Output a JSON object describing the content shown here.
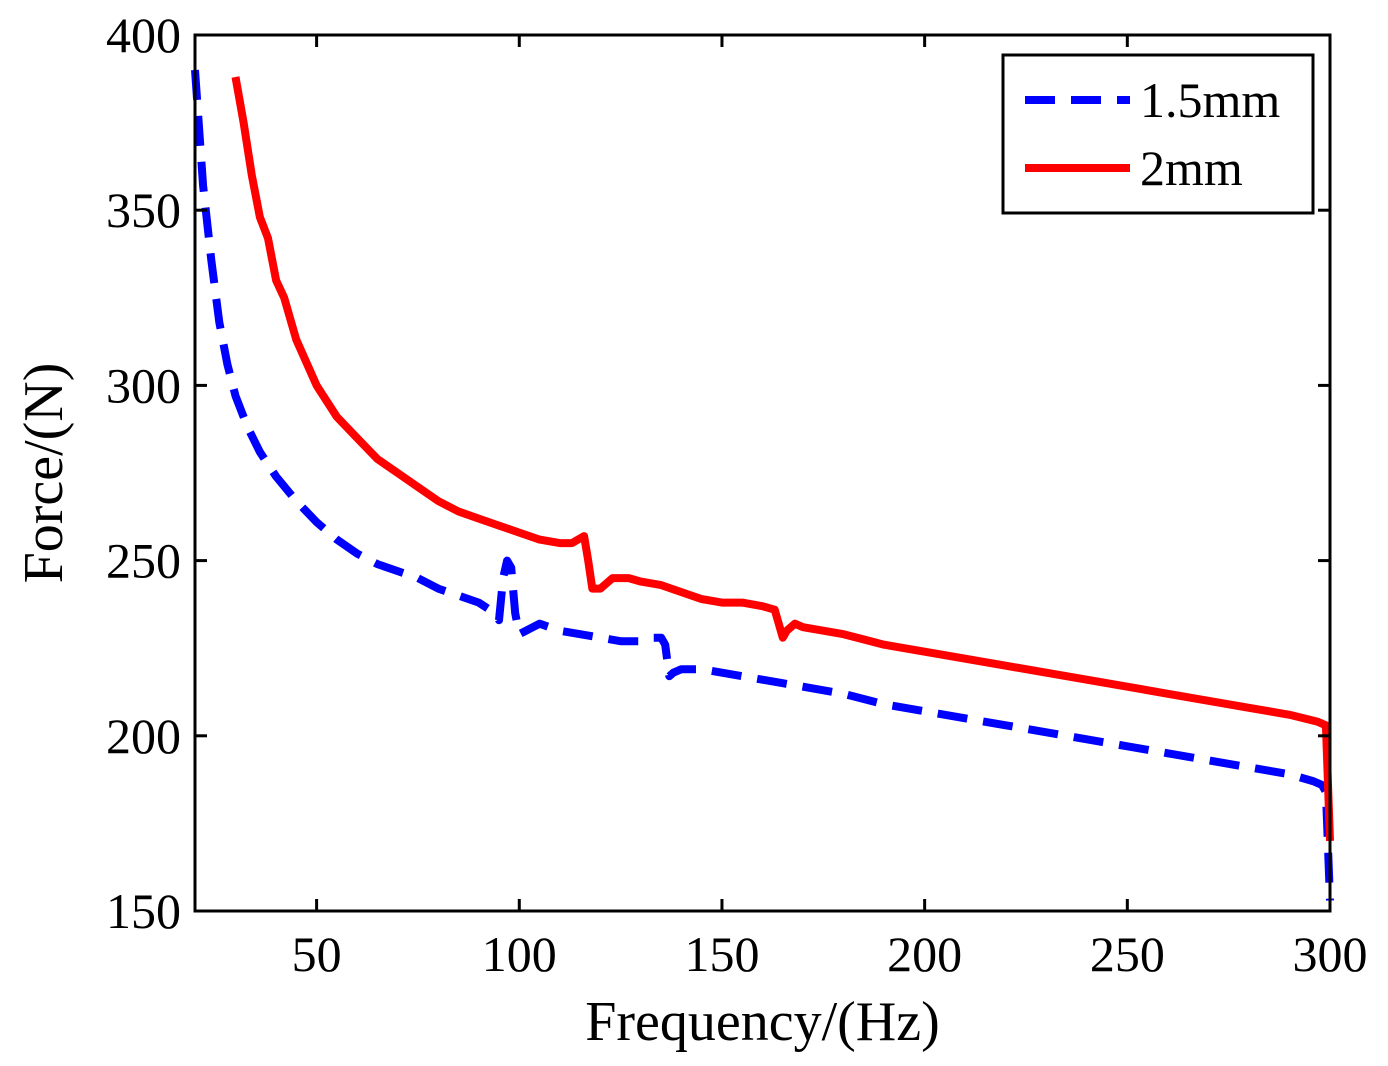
{
  "chart_data": {
    "type": "line",
    "title": "",
    "xlabel": "Frequency/(Hz)",
    "ylabel": "Force/(N)",
    "xlim": [
      20,
      300
    ],
    "ylim": [
      150,
      400
    ],
    "xticks": [
      50,
      100,
      150,
      200,
      250,
      300
    ],
    "yticks": [
      150,
      200,
      250,
      300,
      350,
      400
    ],
    "xtick_labels": [
      "50",
      "100",
      "150",
      "200",
      "250",
      "300"
    ],
    "ytick_labels": [
      "150",
      "200",
      "250",
      "300",
      "350",
      "400"
    ],
    "grid": false,
    "legend_position": "top-right",
    "series": [
      {
        "name": "1.5mm",
        "color": "#0000ff",
        "style": "dashed",
        "x": [
          20,
          22,
          24,
          26,
          28,
          30,
          33,
          36,
          40,
          45,
          50,
          55,
          60,
          65,
          70,
          75,
          80,
          85,
          90,
          94,
          95,
          96,
          97,
          98,
          99,
          100,
          105,
          110,
          115,
          120,
          125,
          130,
          133,
          135,
          136,
          137,
          138,
          140,
          145,
          150,
          155,
          160,
          165,
          170,
          180,
          190,
          200,
          210,
          220,
          230,
          240,
          250,
          260,
          270,
          280,
          290,
          296,
          298,
          299,
          300
        ],
        "y": [
          390,
          357,
          336,
          318,
          306,
          297,
          288,
          281,
          274,
          267,
          261,
          256,
          252,
          249,
          247,
          245,
          242,
          240,
          238,
          235,
          233,
          245,
          250,
          248,
          235,
          229,
          232,
          230,
          229,
          228,
          227,
          227,
          228,
          228,
          226,
          217,
          218,
          219,
          219,
          218,
          217,
          216,
          215,
          214,
          212,
          209,
          207,
          205,
          203,
          201,
          199,
          197,
          195,
          193,
          191,
          189,
          187,
          186,
          184,
          153
        ]
      },
      {
        "name": "2mm",
        "color": "#ff0000",
        "style": "solid",
        "x": [
          30,
          32,
          34,
          36,
          38,
          40,
          42,
          45,
          50,
          55,
          60,
          65,
          70,
          75,
          80,
          85,
          90,
          95,
          100,
          105,
          110,
          113,
          116,
          117,
          118,
          120,
          123,
          127,
          130,
          135,
          140,
          145,
          150,
          155,
          160,
          163,
          165,
          166,
          168,
          170,
          175,
          180,
          190,
          200,
          210,
          220,
          230,
          240,
          250,
          260,
          270,
          280,
          290,
          297,
          299,
          300
        ],
        "y": [
          388,
          375,
          360,
          348,
          342,
          330,
          325,
          313,
          300,
          291,
          285,
          279,
          275,
          271,
          267,
          264,
          262,
          260,
          258,
          256,
          255,
          255,
          257,
          250,
          242,
          242,
          245,
          245,
          244,
          243,
          241,
          239,
          238,
          238,
          237,
          236,
          228,
          230,
          232,
          231,
          230,
          229,
          226,
          224,
          222,
          220,
          218,
          216,
          214,
          212,
          210,
          208,
          206,
          204,
          203,
          170
        ]
      }
    ]
  }
}
